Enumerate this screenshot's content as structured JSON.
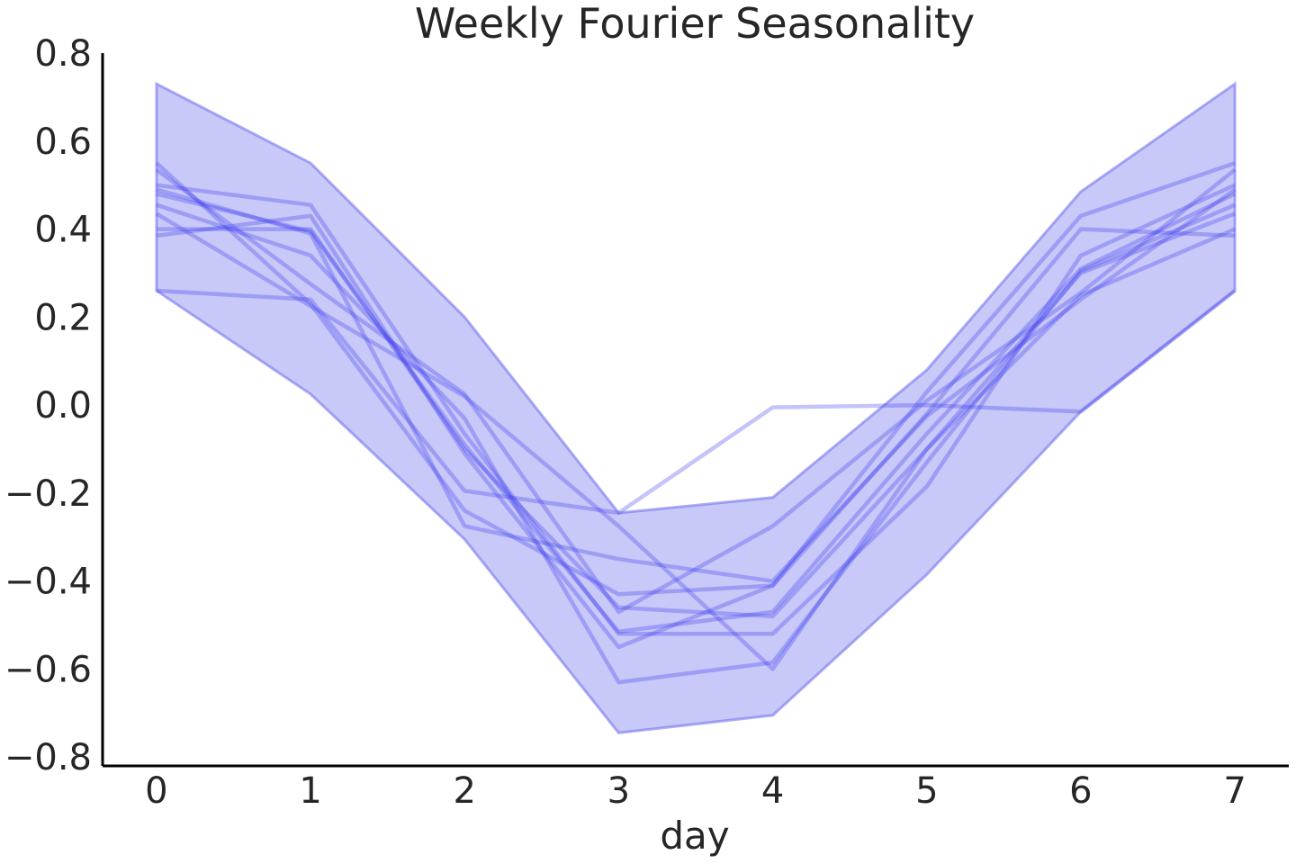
{
  "chart_data": {
    "type": "line",
    "title": "Weekly Fourier Seasonality",
    "xlabel": "day",
    "ylabel": "",
    "xlim": [
      -0.35,
      7.35
    ],
    "ylim": [
      -0.82,
      0.8
    ],
    "grid": false,
    "legend": "none",
    "x_ticks": [
      0,
      1,
      2,
      3,
      4,
      5,
      6,
      7
    ],
    "x_tick_labels": [
      "0",
      "1",
      "2",
      "3",
      "4",
      "5",
      "6",
      "7"
    ],
    "y_ticks": [
      0.8,
      0.6,
      0.4,
      0.2,
      0.0,
      -0.2,
      -0.4,
      -0.6,
      -0.8
    ],
    "y_tick_labels": [
      "0.8",
      "0.6",
      "0.4",
      "0.2",
      "0.0",
      "−0.2",
      "−0.4",
      "−0.6",
      "−0.8"
    ],
    "colors": {
      "line": "#3a3af0",
      "band": "#6b6bef",
      "axis": "#000000",
      "text": "#262626"
    },
    "band": {
      "x": [
        0,
        1,
        2,
        3,
        4,
        5,
        6,
        7
      ],
      "upper": [
        0.73,
        0.55,
        0.2,
        -0.245,
        -0.21,
        0.08,
        0.485,
        0.73
      ],
      "lower": [
        0.26,
        0.025,
        -0.305,
        -0.745,
        -0.705,
        -0.385,
        -0.015,
        0.26
      ]
    },
    "x": [
      0,
      1,
      2,
      3,
      4,
      5,
      6,
      7
    ],
    "series": [
      {
        "values": [
          0.55,
          0.23,
          -0.24,
          -0.43,
          -0.41,
          0.03,
          0.43,
          0.55
        ]
      },
      {
        "values": [
          0.5,
          0.455,
          -0.065,
          -0.52,
          -0.52,
          -0.185,
          0.34,
          0.5
        ]
      },
      {
        "values": [
          0.385,
          0.43,
          -0.11,
          -0.55,
          -0.41,
          -0.02,
          0.4,
          0.385
        ]
      },
      {
        "values": [
          0.435,
          0.225,
          0.02,
          -0.275,
          -0.6,
          -0.1,
          0.3,
          0.435
        ]
      },
      {
        "values": [
          0.26,
          0.24,
          -0.195,
          -0.245,
          -0.005,
          0.0,
          -0.015,
          0.26
        ]
      },
      {
        "values": [
          0.49,
          0.39,
          -0.275,
          -0.35,
          -0.4,
          -0.025,
          0.24,
          0.49
        ]
      },
      {
        "values": [
          0.4,
          0.4,
          -0.1,
          -0.46,
          -0.48,
          -0.1,
          0.25,
          0.4
        ]
      },
      {
        "values": [
          0.455,
          0.34,
          -0.03,
          -0.63,
          -0.585,
          -0.13,
          0.305,
          0.455
        ]
      },
      {
        "values": [
          0.535,
          0.275,
          0.025,
          -0.47,
          -0.275,
          0.01,
          0.255,
          0.535
        ]
      },
      {
        "values": [
          0.48,
          0.395,
          -0.09,
          -0.515,
          -0.47,
          -0.065,
          0.31,
          0.48
        ]
      }
    ]
  }
}
